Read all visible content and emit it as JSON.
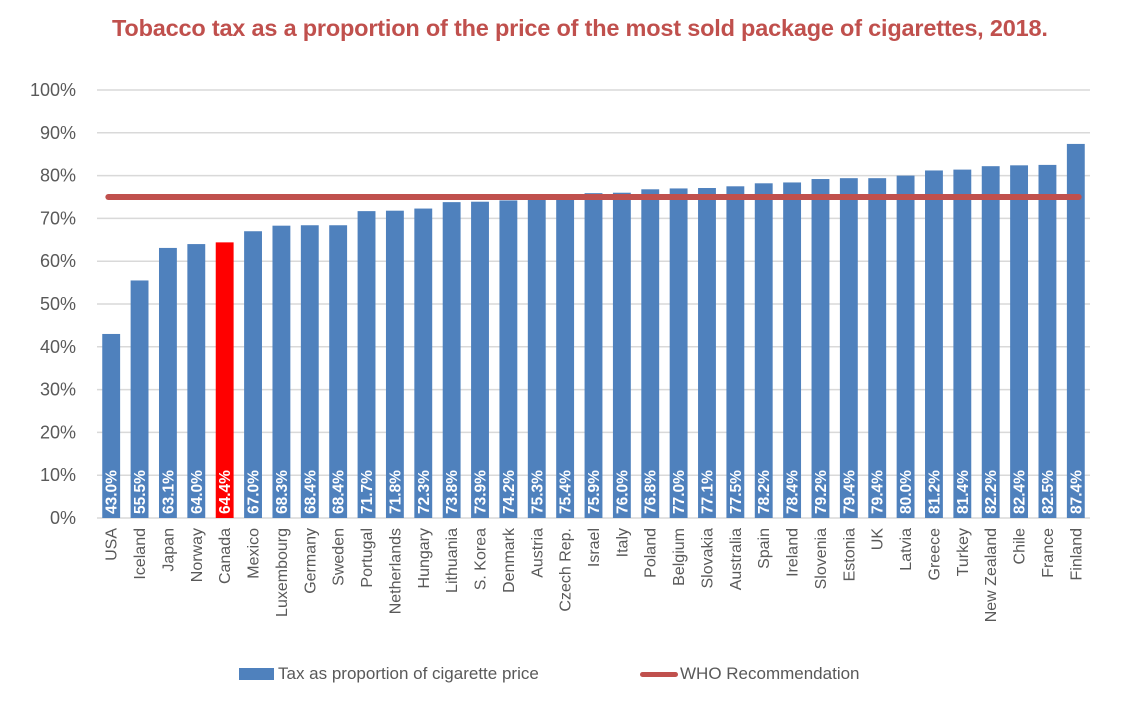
{
  "chart_data": {
    "type": "bar",
    "title": "Tobacco tax as a proportion of the price of the most sold package of cigarettes, 2018.",
    "xlabel": "",
    "ylabel": "",
    "ylim": [
      0,
      100
    ],
    "yticks": [
      "0%",
      "10%",
      "20%",
      "30%",
      "40%",
      "50%",
      "60%",
      "70%",
      "80%",
      "90%",
      "100%"
    ],
    "grid": true,
    "legend_position": "bottom",
    "categories": [
      "USA",
      "Iceland",
      "Japan",
      "Norway",
      "Canada",
      "Mexico",
      "Luxembourg",
      "Germany",
      "Sweden",
      "Portugal",
      "Netherlands",
      "Hungary",
      "Lithuania",
      "S. Korea",
      "Denmark",
      "Austria",
      "Czech Rep.",
      "Israel",
      "Italy",
      "Poland",
      "Belgium",
      "Slovakia",
      "Australia",
      "Spain",
      "Ireland",
      "Slovenia",
      "Estonia",
      "UK",
      "Latvia",
      "Greece",
      "Turkey",
      "New Zealand",
      "Chile",
      "France",
      "Finland"
    ],
    "series": [
      {
        "name": "Tax as proportion of cigarette price",
        "type": "bar",
        "color": "#4f81bd",
        "highlight_color": "#ff0000",
        "highlight_category": "Canada",
        "values": [
          43.0,
          55.5,
          63.1,
          64.0,
          64.4,
          67.0,
          68.3,
          68.4,
          68.4,
          71.7,
          71.8,
          72.3,
          73.8,
          73.9,
          74.2,
          75.3,
          75.4,
          75.9,
          76.0,
          76.8,
          77.0,
          77.1,
          77.5,
          78.2,
          78.4,
          79.2,
          79.4,
          79.4,
          80.0,
          81.2,
          81.4,
          82.2,
          82.4,
          82.5,
          87.4
        ],
        "data_labels": [
          "43.0%",
          "55.5%",
          "63.1%",
          "64.0%",
          "64.4%",
          "67.0%",
          "68.3%",
          "68.4%",
          "68.4%",
          "71.7%",
          "71.8%",
          "72.3%",
          "73.8%",
          "73.9%",
          "74.2%",
          "75.3%",
          "75.4%",
          "75.9%",
          "76.0%",
          "76.8%",
          "77.0%",
          "77.1%",
          "77.5%",
          "78.2%",
          "78.4%",
          "79.2%",
          "79.4%",
          "79.4%",
          "80.0%",
          "81.2%",
          "81.4%",
          "82.2%",
          "82.4%",
          "82.5%",
          "87.4%"
        ]
      },
      {
        "name": "WHO Recommendation",
        "type": "line",
        "color": "#c0504d",
        "value": 75
      }
    ]
  },
  "legend": {
    "bar_label": "Tax as proportion of cigarette price",
    "line_label": "WHO Recommendation"
  }
}
